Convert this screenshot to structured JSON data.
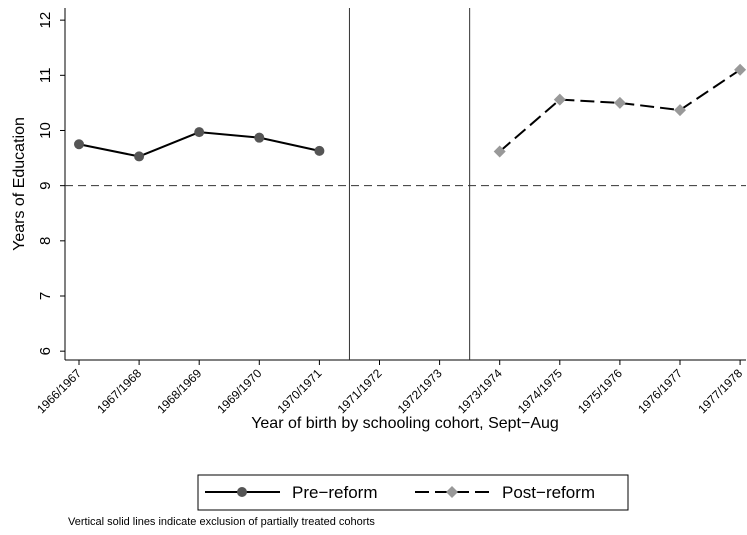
{
  "chart_data": {
    "type": "line",
    "x_label": "Year of birth by schooling cohort, Sept−Aug",
    "y_label": "Years of Education",
    "note": "Vertical solid lines indicate exclusion of partially treated cohorts",
    "categories": [
      "1966/1967",
      "1967/1968",
      "1968/1969",
      "1969/1970",
      "1970/1971",
      "1971/1972",
      "1972/1973",
      "1973/1974",
      "1974/1975",
      "1975/1976",
      "1976/1977",
      "1977/1978"
    ],
    "series": [
      {
        "name": "Pre−reform",
        "color": "#555555",
        "line_color": "#000000",
        "marker": "circle",
        "line_style": "solid",
        "values": [
          9.75,
          9.53,
          9.97,
          9.87,
          9.63,
          null,
          null,
          null,
          null,
          null,
          null,
          null
        ]
      },
      {
        "name": "Post−reform",
        "color": "#999999",
        "line_color": "#000000",
        "marker": "diamond",
        "line_style": "dashed",
        "values": [
          null,
          null,
          null,
          null,
          null,
          null,
          null,
          9.62,
          10.56,
          10.5,
          10.37,
          11.1
        ]
      }
    ],
    "ylim": [
      5.84,
      12.22
    ],
    "yticks": [
      6,
      7,
      8,
      9,
      10,
      11,
      12
    ],
    "reference_y": 9,
    "vertical_lines": [
      4.5,
      6.5
    ],
    "legend": "bottom"
  }
}
